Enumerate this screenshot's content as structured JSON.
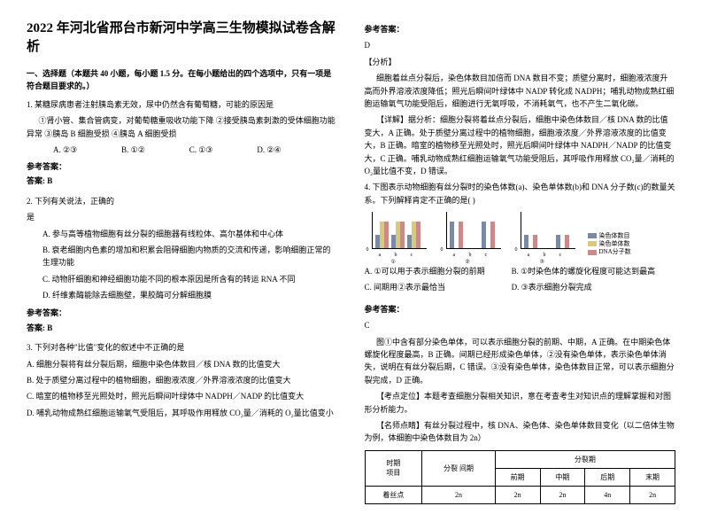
{
  "title": "2022 年河北省邢台市新河中学高三生物模拟试卷含解析",
  "section1_head": "一、选择题（本题共 40 小题，每小题 1.5 分。在每小题给出的四个选项中，只有一项是符合题目要求的。）",
  "q1_stem": "1. 某糖尿病患者注射胰岛素无效，尿中仍然含有葡萄糖，可能的原因是",
  "q1_body": "①肾小管、集合管病变，对葡萄糖重吸收功能下降 ②接受胰岛素刺激的受体细胞功能异常 ③胰岛 B 细胞受损 ④胰岛 A 细胞受损",
  "q1_oA": "A. ②③",
  "q1_oB": "B. ①②",
  "q1_oC": "C. ①③",
  "q1_oD": "D. ②④",
  "ans_label": "参考答案：",
  "q1_ans": "答案: B",
  "q2_stem": "2. 下列有关说法，正确的",
  "q2_stem2": "是",
  "q2_A": "A. 参与高等植物细胞有丝分裂的细胞器有线粒体、高尔基体和中心体",
  "q2_B": "B. 衰老细胞内色素的增加和积累会阻碍细胞内物质的交流和传递，影响细胞正常的生理功能",
  "q2_C": "C. 动物肝细胞和神经细胞功能不同的根本原因是所含有的转运 RNA 不同",
  "q2_D": "D. 纤维素酶能除去细胞壁，果胶酶可分解细胞膜",
  "q2_ans": "答案: B",
  "q3_stem": "3. 下列对各种\"比值\"变化的叙述中不正确的是",
  "q3_A": "A. 细胞分裂将有丝分裂后期，细胞中染色体数目／核 DNA 数的比值变大",
  "q3_B": "B. 处于质壁分离过程中的植物细胞，细胞液浓度／外界溶液浓度的比值变大",
  "q3_C": "C. 暗室的植物移至光照处时，照光后瞬间叶绿体中 NADPH／NADP 的比值变大",
  "q3_D": "D. 哺乳动物成熟红细胞运输氧气受阻后，其呼吸作用释放 CO₂量／消耗的 O₂量比值变小",
  "ans_d": "D",
  "fenxi": "【分析】",
  "fenxi_body": "细胞着丝点分裂后，染色体数目加倍而 DNA 数目不变；质壁分离时，细胞液浓度升高而外界溶液浓度降低；照光后瞬间叶绿体中 NADP 转化成 NADPH；哺乳动物成熟红细胞运输氧气功能受阻后，细胞进行无氧呼吸，不消耗氧气，也不产生二氧化碳。",
  "xiangjie": "【详解】据分析：细胞分裂将着丝点分裂后，细胞中染色体数目／核 DNA 数的比值变大，A 正确。处于质壁分离过程中的植物细胞，细胞液浓度／外界溶液浓度的比值变大，B 正确。暗室的植物移至光照处时，照光后瞬间叶绿体中 NADPH／NADP 的比值变大，C 正确。哺乳动物成熟红细胞运输氧气功能受阻后，其呼吸作用释放 CO₂量／消耗的 O₂量比值不变，D 错误。",
  "q4_stem": "4. 下图表示动物细胞有丝分裂时的染色体数(a)、染色单体数(b)和 DNA 分子数(c)的数量关系。下列解释肯定不正确的是( )",
  "q4_A": "A. ①可以用于表示细胞分裂的前期",
  "q4_B": "B. ①时染色体的螺旋化程度可能达到最高",
  "q4_C": "C. 间期用②表示最恰当",
  "q4_D": "D. ③表示细胞分裂完成",
  "q4_ans_c": "C",
  "q4_explain": "图①中含有部分染色单体，可以表示细胞分裂的前期、中期，A 正确。在中期染色体螺旋化程度最高，B 正确。间期已经形成染色单体，②没有染色单体，表示染色单体消失，说明在有丝分裂后期，C 错误。③没有染色单体，染色体数目正常，可以表示细胞分裂完成，D 正确。",
  "kaodian": "【考点定位】本题考查细胞分裂相关知识，意在考查考生对知识点的理解掌握和对图形分析能力。",
  "mingshi": "【名师点睛】有丝分裂过程中，核 DNA、染色体、染色单体数目变化（以二倍体生物为例，体细胞中染色体数目为 2n）",
  "tbl_h_period": "时期",
  "tbl_h_item": "项目",
  "tbl_h_inter": "分裂\n间期",
  "tbl_h_div": "分裂期",
  "tbl_h_pro": "前期",
  "tbl_h_meta": "中期",
  "tbl_h_ana": "后期",
  "tbl_h_telo": "末期",
  "tbl_row1_label": "着丝点",
  "tbl_r1_c1": "2n",
  "tbl_r1_c2": "2n",
  "tbl_r1_c3": "2n",
  "tbl_r1_c4": "4n",
  "tbl_r1_c5": "2n",
  "legend1": "染色体数目",
  "legend2": "染色单体数",
  "legend3": "DNA分子数",
  "chart_colors": {
    "a": "#7a8aa3",
    "b": "#d9c97a",
    "c": "#c98a8a"
  },
  "charts": [
    {
      "label": "①",
      "vals": {
        "a": [
          15,
          15,
          15
        ],
        "b": [
          30,
          30,
          30
        ],
        "c": [
          30,
          30,
          30
        ]
      }
    },
    {
      "label": "②",
      "vals": {
        "a": [
          30,
          0,
          30
        ],
        "b": [
          0,
          0,
          0
        ],
        "c": [
          30,
          0,
          30
        ]
      }
    },
    {
      "label": "③",
      "vals": {
        "a": [
          15,
          0,
          15
        ],
        "b": [
          0,
          0,
          0
        ],
        "c": [
          15,
          0,
          15
        ]
      }
    }
  ]
}
